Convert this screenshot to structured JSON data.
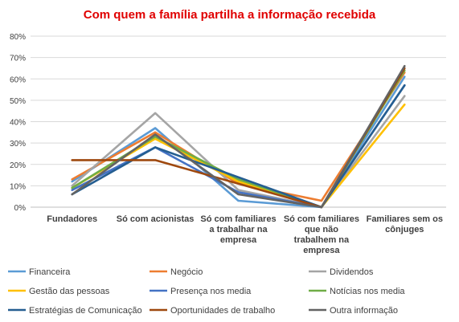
{
  "chart_data": {
    "type": "line",
    "title": "Com quem a família partilha a informação recebida",
    "categories": [
      "Fundadores",
      "Só com acionistas",
      "Só com familiares a trabalhar na empresa",
      "Só com familiares que não trabalhem na empresa",
      "Familiares sem os cônjuges"
    ],
    "category_lines": [
      [
        "Fundadores"
      ],
      [
        "Só com acionistas"
      ],
      [
        "Só com familiares",
        "a trabalhar na",
        "empresa"
      ],
      [
        "Só com familiares",
        "que não",
        "trabalhem na",
        "empresa"
      ],
      [
        "Familiares sem os",
        "cônjuges"
      ]
    ],
    "ylim": [
      0,
      0.8
    ],
    "y_ticks": [
      "0%",
      "10%",
      "20%",
      "30%",
      "40%",
      "50%",
      "60%",
      "70%",
      "80%"
    ],
    "grid": true,
    "legend_position": "bottom",
    "series": [
      {
        "name": "Financeira",
        "color": "#5B9BD5",
        "values": [
          0.12,
          0.37,
          0.03,
          0.0,
          0.61
        ]
      },
      {
        "name": "Negócio",
        "color": "#ED7D31",
        "values": [
          0.13,
          0.35,
          0.11,
          0.03,
          0.63
        ]
      },
      {
        "name": "Dividendos",
        "color": "#A5A5A5",
        "values": [
          0.1,
          0.44,
          0.08,
          0.0,
          0.52
        ]
      },
      {
        "name": "Gestão das pessoas",
        "color": "#FFC000",
        "values": [
          0.09,
          0.32,
          0.12,
          0.0,
          0.48
        ]
      },
      {
        "name": "Presença nos media",
        "color": "#4472C4",
        "values": [
          0.08,
          0.28,
          0.07,
          0.0,
          0.57
        ]
      },
      {
        "name": "Notícias nos media",
        "color": "#70AD47",
        "values": [
          0.09,
          0.33,
          0.13,
          0.0,
          0.64
        ]
      },
      {
        "name": "Estratégias de Comunicação",
        "color": "#255E91",
        "values": [
          0.06,
          0.28,
          0.14,
          0.0,
          0.57
        ]
      },
      {
        "name": "Oportunidades de trabalho",
        "color": "#9E480E",
        "values": [
          0.22,
          0.22,
          0.11,
          0.0,
          0.65
        ]
      },
      {
        "name": "Outra informação",
        "color": "#636363",
        "values": [
          0.06,
          0.34,
          0.06,
          0.0,
          0.66
        ]
      }
    ]
  }
}
